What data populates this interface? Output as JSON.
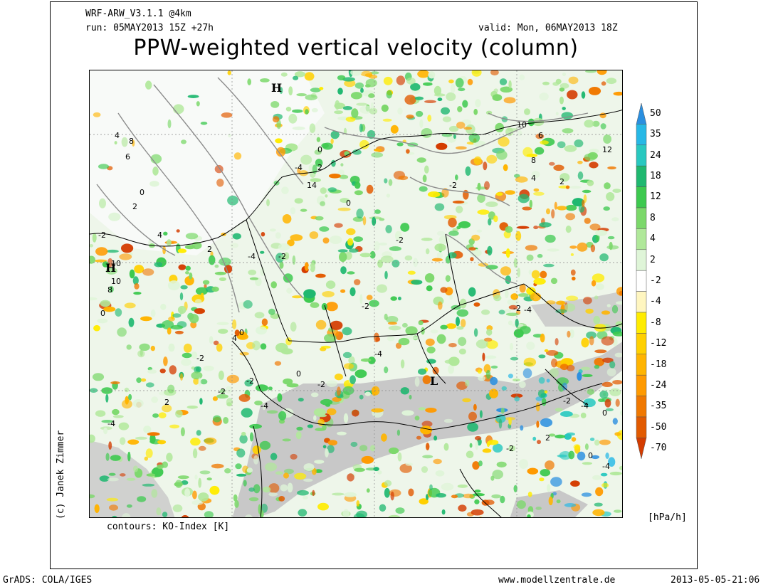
{
  "header": {
    "model": "WRF-ARW_V3.1.1 @4km",
    "run": "run: 05MAY2013 15Z +27h",
    "valid": "valid: Mon, 06MAY2013 18Z",
    "title": "PPW-weighted vertical velocity (column)"
  },
  "map": {
    "pressure_centers": [
      {
        "label": "H",
        "name": "high-north"
      },
      {
        "label": "H",
        "name": "high-west"
      },
      {
        "label": "L",
        "name": "low-alps"
      }
    ],
    "contour_labels": [
      "4",
      "8",
      "6",
      "0",
      "2",
      "-2",
      "4",
      "10",
      "10",
      "8",
      "0",
      "2",
      "-4",
      "-2",
      "0",
      "2",
      "14",
      "12",
      "10",
      "6",
      "8",
      "4",
      "2",
      "-2",
      "0",
      "-4",
      "-2",
      "-2",
      "4",
      "-2",
      "0",
      "-2",
      "2",
      "-2",
      "-4",
      "0",
      "-4",
      "-2",
      "-4",
      "-2",
      "-4",
      "-2",
      "-4",
      "0",
      "-2",
      "2",
      "0",
      "-4"
    ],
    "contours_caption": "contours: KO-Index [K]"
  },
  "colorbar": {
    "levels": [
      "50",
      "35",
      "24",
      "18",
      "12",
      "8",
      "4",
      "2",
      "-2",
      "-4",
      "-8",
      "-12",
      "-18",
      "-24",
      "-35",
      "-50",
      "-70"
    ],
    "colors": [
      "#2a8fe0",
      "#26b8e6",
      "#28c8c0",
      "#1fb870",
      "#3dc94f",
      "#7bd86a",
      "#b0e89a",
      "#dff5d8",
      "#ffffff",
      "#fff6c0",
      "#ffec00",
      "#ffd000",
      "#ffb400",
      "#ff9a00",
      "#f07800",
      "#e25a00",
      "#d43c00"
    ],
    "unit": "[hPa/h]"
  },
  "footer": {
    "software": "GrADS: COLA/IGES",
    "website": "www.modellzentrale.de",
    "timestamp": "2013-05-05-21:06",
    "credit": "(c) Janek Zimmer"
  }
}
